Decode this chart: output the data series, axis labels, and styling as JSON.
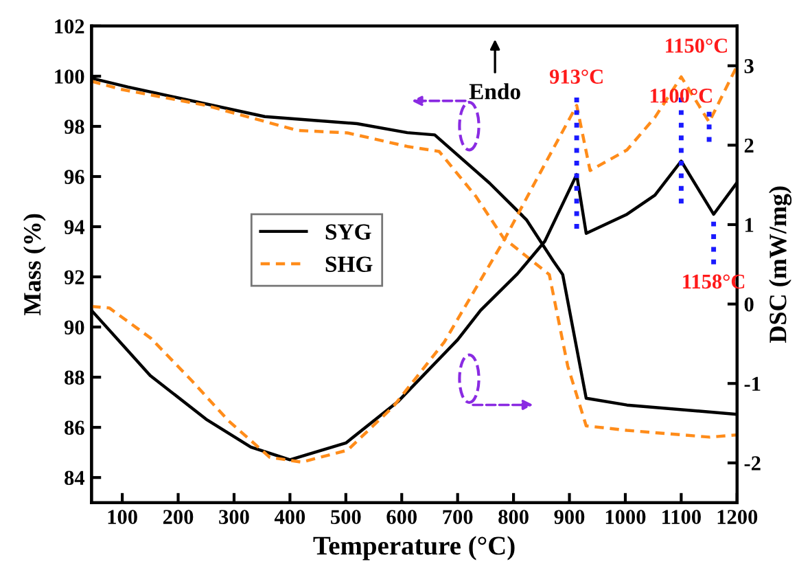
{
  "chart_data": {
    "type": "line",
    "xlabel": "Temperature (°C)",
    "ylabel": "Mass (%)",
    "y2label": "DSC (mW/mg)",
    "xlim": [
      45,
      1200
    ],
    "xticks": [
      100,
      200,
      300,
      400,
      500,
      600,
      700,
      800,
      900,
      1000,
      1100,
      1200
    ],
    "ylim": [
      83,
      102
    ],
    "yticks": [
      84,
      86,
      88,
      90,
      92,
      94,
      96,
      98,
      100,
      102
    ],
    "y2lim": [
      -2.5,
      3.5
    ],
    "y2ticks": [
      -2,
      -1,
      0,
      1,
      2,
      3
    ],
    "legend": "left",
    "grid": false,
    "marker": "none",
    "series": [
      {
        "name": "SYG",
        "color": "#000000",
        "line_style": "solid",
        "x": [
          45,
          110,
          355,
          520,
          610,
          659,
          757,
          823,
          871,
          888,
          930,
          1003,
          1200
        ],
        "values": [
          99.92,
          99.57,
          98.39,
          98.11,
          97.75,
          97.66,
          95.74,
          94.28,
          92.64,
          92.09,
          87.16,
          86.89,
          86.52
        ]
      },
      {
        "name": "SHG",
        "color": "#ff8c1a",
        "line_style": "dashed",
        "x": [
          45,
          97,
          249,
          413,
          503,
          610,
          667,
          733,
          782,
          864,
          897,
          930,
          1003,
          1151,
          1200
        ],
        "values": [
          99.8,
          99.48,
          98.84,
          97.84,
          97.74,
          97.2,
          97.0,
          95.2,
          93.55,
          92.09,
          88.44,
          86.06,
          85.88,
          85.61,
          85.7
        ]
      },
      {
        "color": "#000000",
        "line_style": "solid",
        "axis": "y2",
        "x": [
          45,
          150,
          250,
          330,
          400,
          500,
          593,
          700,
          741,
          807,
          856,
          913,
          930,
          1003,
          1053,
          1100,
          1158,
          1200
        ],
        "values": [
          -0.08,
          -0.9,
          -1.45,
          -1.8,
          -1.96,
          -1.75,
          -1.23,
          -0.45,
          -0.08,
          0.38,
          0.79,
          1.63,
          0.89,
          1.13,
          1.37,
          1.8,
          1.13,
          1.53
        ]
      },
      {
        "color": "#ff8c1a",
        "line_style": "dashed",
        "axis": "y2",
        "x": [
          45,
          77,
          151,
          225,
          290,
          364,
          421,
          503,
          585,
          676,
          741,
          782,
          839,
          913,
          937,
          1003,
          1053,
          1100,
          1150,
          1200
        ],
        "values": [
          -0.03,
          -0.05,
          -0.43,
          -0.97,
          -1.47,
          -1.93,
          -1.99,
          -1.84,
          -1.29,
          -0.48,
          0.3,
          0.79,
          1.54,
          2.5,
          1.68,
          1.94,
          2.35,
          2.86,
          2.29,
          3.0
        ]
      }
    ],
    "annotations": [
      "Endo",
      "913°C",
      "1100°C",
      "1150°C",
      "1158°C"
    ]
  }
}
